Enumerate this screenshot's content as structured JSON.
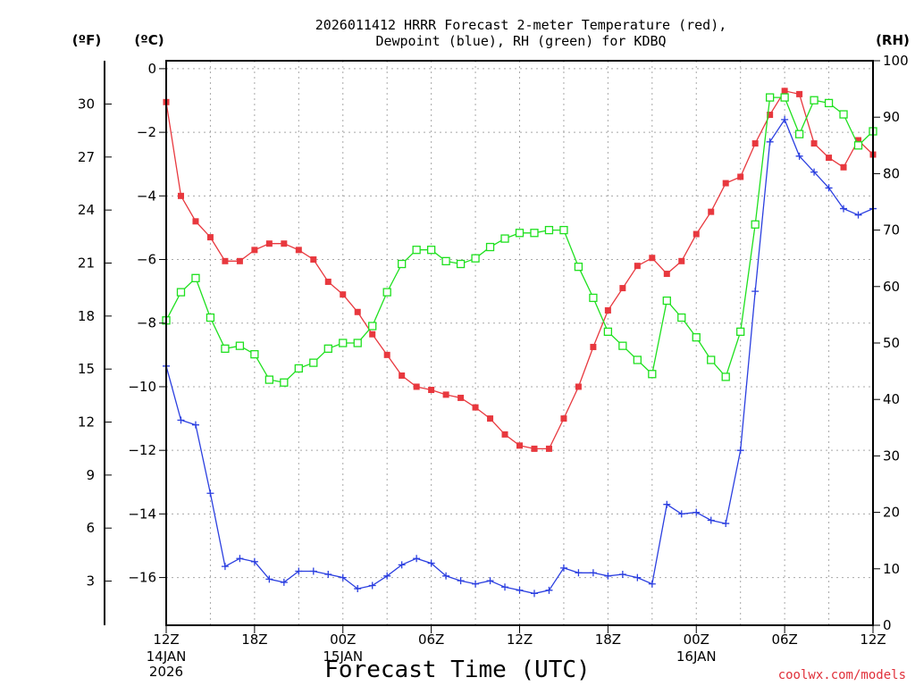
{
  "chart_data": {
    "type": "line",
    "title_lines": [
      "2026011412 HRRR Forecast 2-meter Temperature (red),",
      "Dewpoint (blue), RH (green) for KDBQ"
    ],
    "xlabel": "Forecast Time (UTC)",
    "credit": "coolwx.com/models",
    "left_axis_units": {
      "fahrenheit": "(ºF)",
      "celsius": "(ºC)"
    },
    "right_axis_unit": "(RH)",
    "x_range_hours": [
      0,
      48
    ],
    "celsius_range": [
      -17.5,
      0.25
    ],
    "rh_range": [
      0,
      100
    ],
    "celsius_ticks": [
      0,
      -2,
      -4,
      -6,
      -8,
      -10,
      -12,
      -14,
      -16
    ],
    "fahrenheit_ticks": [
      30,
      27,
      24,
      21,
      18,
      15,
      12,
      9,
      6,
      3
    ],
    "rh_ticks": [
      0,
      10,
      20,
      30,
      40,
      50,
      60,
      70,
      80,
      90,
      100
    ],
    "x_ticks": [
      {
        "h": 0,
        "label": "12Z",
        "sub": [
          "14JAN",
          "2026"
        ]
      },
      {
        "h": 6,
        "label": "18Z",
        "sub": []
      },
      {
        "h": 12,
        "label": "00Z",
        "sub": [
          "15JAN"
        ]
      },
      {
        "h": 18,
        "label": "06Z",
        "sub": []
      },
      {
        "h": 24,
        "label": "12Z",
        "sub": []
      },
      {
        "h": 30,
        "label": "18Z",
        "sub": []
      },
      {
        "h": 36,
        "label": "00Z",
        "sub": [
          "16JAN"
        ]
      },
      {
        "h": 42,
        "label": "06Z",
        "sub": []
      },
      {
        "h": 48,
        "label": "12Z",
        "sub": []
      }
    ],
    "series": [
      {
        "key": "temperature",
        "axis": "celsius",
        "color": "#e8383e",
        "marker": "filled-square",
        "values": [
          -1.05,
          -4.0,
          -4.8,
          -5.3,
          -6.05,
          -6.05,
          -5.7,
          -5.5,
          -5.5,
          -5.7,
          -6.0,
          -6.7,
          -7.1,
          -7.65,
          -8.35,
          -9.0,
          -9.65,
          -10.0,
          -10.1,
          -10.25,
          -10.35,
          -10.65,
          -11.0,
          -11.5,
          -11.85,
          -11.95,
          -11.95,
          -11.0,
          -10.0,
          -8.75,
          -7.6,
          -6.9,
          -6.2,
          -5.95,
          -6.45,
          -6.05,
          -5.2,
          -4.5,
          -3.6,
          -3.4,
          -2.35,
          -1.45,
          -0.7,
          -0.8,
          -2.35,
          -2.8,
          -3.1,
          -2.25,
          -2.7
        ]
      },
      {
        "key": "dewpoint",
        "axis": "celsius",
        "color": "#2b3fe0",
        "marker": "plus",
        "values": [
          -9.35,
          -11.05,
          -11.2,
          -13.35,
          -15.65,
          -15.4,
          -15.5,
          -16.05,
          -16.15,
          -15.8,
          -15.8,
          -15.9,
          -16.0,
          -16.35,
          -16.25,
          -15.95,
          -15.6,
          -15.4,
          -15.55,
          -15.95,
          -16.1,
          -16.2,
          -16.1,
          -16.3,
          -16.4,
          -16.5,
          -16.4,
          -15.7,
          -15.85,
          -15.85,
          -15.95,
          -15.9,
          -16.0,
          -16.2,
          -13.7,
          -14.0,
          -13.95,
          -14.2,
          -14.3,
          -12.0,
          -7.0,
          -2.3,
          -1.6,
          -2.75,
          -3.25,
          -3.75,
          -4.4,
          -4.6,
          -4.4
        ]
      },
      {
        "key": "rh",
        "axis": "rh",
        "color": "#1ee01e",
        "marker": "open-square",
        "values": [
          54,
          59,
          61.5,
          54.5,
          49,
          49.5,
          48,
          43.5,
          43,
          45.5,
          46.5,
          49,
          50,
          50,
          53,
          59,
          64,
          66.5,
          66.5,
          64.5,
          64,
          65,
          67,
          68.5,
          69.5,
          69.5,
          70,
          70,
          63.5,
          58,
          52,
          49.5,
          47,
          44.5,
          57.5,
          54.5,
          51,
          47,
          44,
          52,
          71,
          93.5,
          93.5,
          87,
          93,
          92.5,
          90.5,
          85,
          87.5
        ]
      }
    ]
  }
}
